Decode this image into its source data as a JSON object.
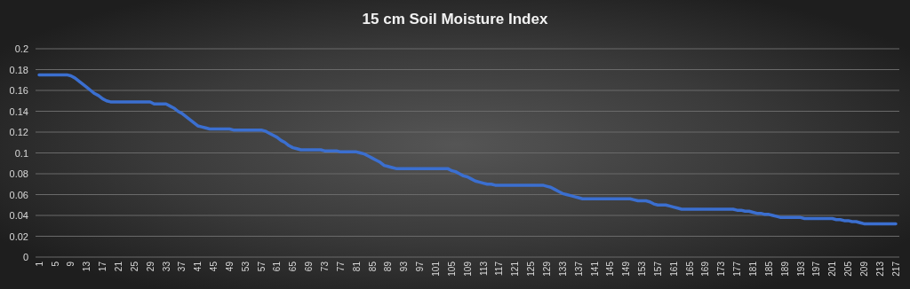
{
  "chart_data": {
    "type": "line",
    "title": "15 cm Soil Moisture Index",
    "categories": [
      "1",
      null,
      null,
      null,
      "5",
      null,
      null,
      null,
      "9",
      null,
      null,
      null,
      "13",
      null,
      null,
      null,
      "17",
      null,
      null,
      null,
      "21",
      null,
      null,
      null,
      "25",
      null,
      null,
      null,
      "29",
      null,
      null,
      null,
      "33",
      null,
      null,
      null,
      "37",
      null,
      null,
      null,
      "41",
      null,
      null,
      null,
      "45",
      null,
      null,
      null,
      "49",
      null,
      null,
      null,
      "53",
      null,
      null,
      null,
      "57",
      null,
      null,
      null,
      "61",
      null,
      null,
      null,
      "65",
      null,
      null,
      null,
      "69",
      null,
      null,
      null,
      "73",
      null,
      null,
      null,
      "77",
      null,
      null,
      null,
      "81",
      null,
      null,
      null,
      "85",
      null,
      null,
      null,
      "89",
      null,
      null,
      null,
      "93",
      null,
      null,
      null,
      "97",
      null,
      null,
      null,
      "101",
      null,
      null,
      null,
      "105",
      null,
      null,
      null,
      "109",
      null,
      null,
      null,
      "113",
      null,
      null,
      null,
      "117",
      null,
      null,
      null,
      "121",
      null,
      null,
      null,
      "125",
      null,
      null,
      null,
      "129",
      null,
      null,
      null,
      "133",
      null,
      null,
      null,
      "137",
      null,
      null,
      null,
      "141",
      null,
      null,
      null,
      "145",
      null,
      null,
      null,
      "149",
      null,
      null,
      null,
      "153",
      null,
      null,
      null,
      "157",
      null,
      null,
      null,
      "161",
      null,
      null,
      null,
      "165",
      null,
      null,
      null,
      "169",
      null,
      null,
      null,
      "173",
      null,
      null,
      null,
      "177",
      null,
      null,
      null,
      "181",
      null,
      null,
      null,
      "185",
      null,
      null,
      null,
      "189",
      null,
      null,
      null,
      "193",
      null,
      null,
      null,
      "197",
      null,
      null,
      null,
      "201",
      null,
      null,
      null,
      "205",
      null,
      null,
      null,
      "209",
      null,
      null,
      null,
      "213",
      null,
      null,
      null,
      "217"
    ],
    "series": [
      {
        "color": "#3b6fd0",
        "values": [
          0.175,
          0.175,
          0.175,
          0.175,
          0.175,
          0.175,
          0.175,
          0.175,
          0.174,
          0.172,
          0.169,
          0.166,
          0.163,
          0.16,
          0.157,
          0.155,
          0.152,
          0.15,
          0.149,
          0.149,
          0.149,
          0.149,
          0.149,
          0.149,
          0.149,
          0.149,
          0.149,
          0.149,
          0.149,
          0.147,
          0.147,
          0.147,
          0.147,
          0.145,
          0.143,
          0.14,
          0.138,
          0.135,
          0.132,
          0.129,
          0.126,
          0.125,
          0.124,
          0.123,
          0.123,
          0.123,
          0.123,
          0.123,
          0.123,
          0.122,
          0.122,
          0.122,
          0.122,
          0.122,
          0.122,
          0.122,
          0.122,
          0.121,
          0.119,
          0.117,
          0.115,
          0.112,
          0.11,
          0.107,
          0.105,
          0.104,
          0.103,
          0.103,
          0.103,
          0.103,
          0.103,
          0.103,
          0.102,
          0.102,
          0.102,
          0.102,
          0.101,
          0.101,
          0.101,
          0.101,
          0.101,
          0.1,
          0.099,
          0.097,
          0.095,
          0.093,
          0.091,
          0.088,
          0.087,
          0.086,
          0.085,
          0.085,
          0.085,
          0.085,
          0.085,
          0.085,
          0.085,
          0.085,
          0.085,
          0.085,
          0.085,
          0.085,
          0.085,
          0.085,
          0.083,
          0.082,
          0.08,
          0.078,
          0.077,
          0.075,
          0.073,
          0.072,
          0.071,
          0.07,
          0.07,
          0.069,
          0.069,
          0.069,
          0.069,
          0.069,
          0.069,
          0.069,
          0.069,
          0.069,
          0.069,
          0.069,
          0.069,
          0.069,
          0.068,
          0.067,
          0.065,
          0.063,
          0.061,
          0.06,
          0.059,
          0.058,
          0.057,
          0.056,
          0.056,
          0.056,
          0.056,
          0.056,
          0.056,
          0.056,
          0.056,
          0.056,
          0.056,
          0.056,
          0.056,
          0.056,
          0.055,
          0.054,
          0.054,
          0.054,
          0.053,
          0.051,
          0.05,
          0.05,
          0.05,
          0.049,
          0.048,
          0.047,
          0.046,
          0.046,
          0.046,
          0.046,
          0.046,
          0.046,
          0.046,
          0.046,
          0.046,
          0.046,
          0.046,
          0.046,
          0.046,
          0.046,
          0.045,
          0.045,
          0.044,
          0.044,
          0.043,
          0.042,
          0.042,
          0.041,
          0.041,
          0.04,
          0.039,
          0.038,
          0.038,
          0.038,
          0.038,
          0.038,
          0.038,
          0.037,
          0.037,
          0.037,
          0.037,
          0.037,
          0.037,
          0.037,
          0.037,
          0.036,
          0.036,
          0.035,
          0.035,
          0.034,
          0.034,
          0.033,
          0.032,
          0.032,
          0.032,
          0.032,
          0.032,
          0.032,
          0.032,
          0.032,
          0.032
        ]
      }
    ],
    "ylim": [
      0,
      0.2
    ],
    "yticks": [
      0,
      0.02,
      0.04,
      0.06,
      0.08,
      0.1,
      0.12,
      0.14,
      0.16,
      0.18,
      0.2
    ],
    "grid": "y",
    "marker": "none",
    "line_style": "solid"
  }
}
